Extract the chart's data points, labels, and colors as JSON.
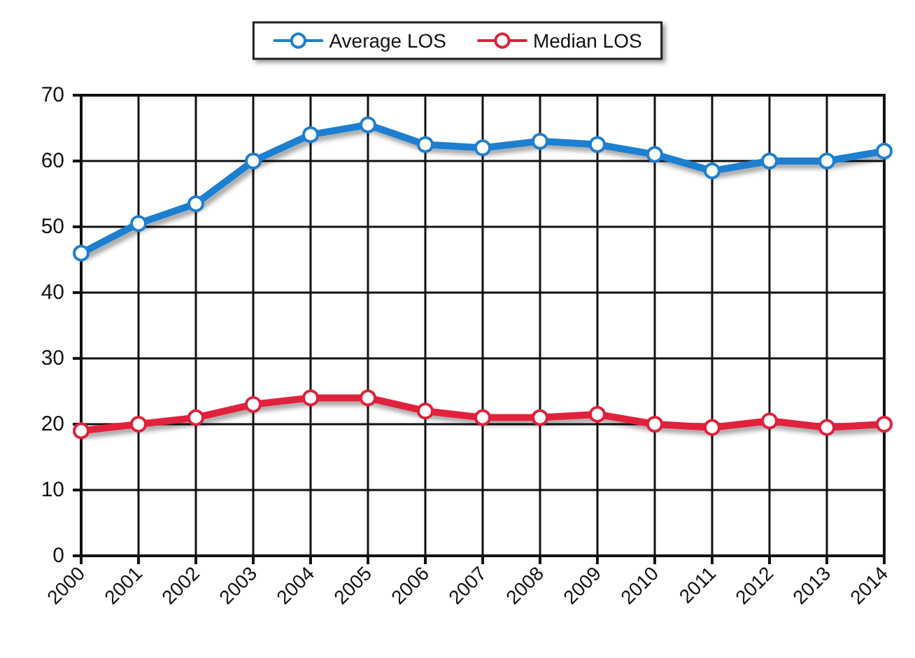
{
  "chart_data": {
    "type": "line",
    "categories": [
      "2000",
      "2001",
      "2002",
      "2003",
      "2004",
      "2005",
      "2006",
      "2007",
      "2008",
      "2009",
      "2010",
      "2011",
      "2012",
      "2013",
      "2014"
    ],
    "series": [
      {
        "name": "Average LOS",
        "color": "#1f7fd0",
        "values": [
          46,
          50.5,
          53.5,
          60,
          64,
          65.5,
          62.5,
          62,
          63,
          62.5,
          61,
          58.5,
          60,
          60,
          61.5
        ]
      },
      {
        "name": "Median LOS",
        "color": "#e0203c",
        "values": [
          19,
          20,
          21,
          23,
          24,
          24,
          22,
          21,
          21,
          21.5,
          20,
          19.5,
          20.5,
          19.5,
          20
        ]
      }
    ],
    "ylim": [
      0,
      70
    ],
    "yticks": [
      0,
      10,
      20,
      30,
      40,
      50,
      60,
      70
    ],
    "grid": true,
    "legend": "top",
    "marker": "circle",
    "line_style": "solid"
  }
}
